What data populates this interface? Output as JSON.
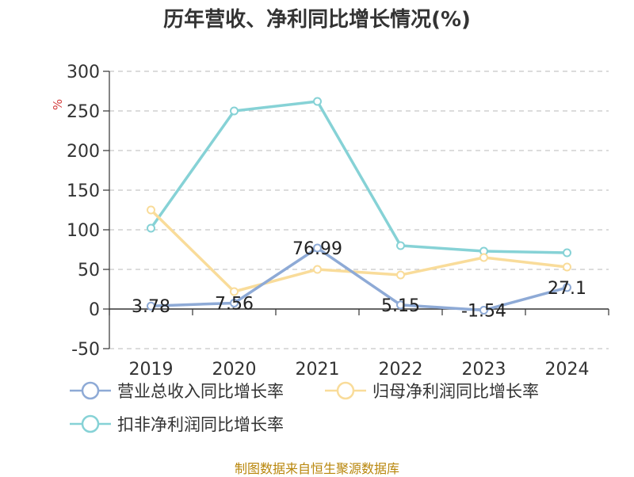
{
  "title": "历年营收、净利同比增长情况(%)",
  "source": "制图数据来自恒生聚源数据库",
  "chart_data": {
    "type": "line",
    "title": "历年营收、净利同比增长情况(%)",
    "ylabel": "%",
    "ylim": [
      -50,
      300
    ],
    "yticks": [
      300,
      250,
      200,
      150,
      100,
      50,
      0,
      -50
    ],
    "categories": [
      "2019",
      "2020",
      "2021",
      "2022",
      "2023",
      "2024"
    ],
    "grid": true,
    "legend_position": "bottom",
    "series": [
      {
        "name": "营业总收入同比增长率",
        "color": "#8eaad6",
        "values": [
          3.78,
          7.56,
          76.99,
          5.15,
          -1.54,
          27.1
        ],
        "labels": [
          "3.78",
          "7.56",
          "76.99",
          "5.15",
          "-1.54",
          "27.1"
        ]
      },
      {
        "name": "归母净利润同比增长率",
        "color": "#f9dc9a",
        "values": [
          125,
          22,
          50,
          43,
          65,
          53
        ]
      },
      {
        "name": "扣非净利润同比增长率",
        "color": "#86d2d6",
        "values": [
          102,
          250,
          262,
          80,
          73,
          71
        ]
      }
    ]
  }
}
